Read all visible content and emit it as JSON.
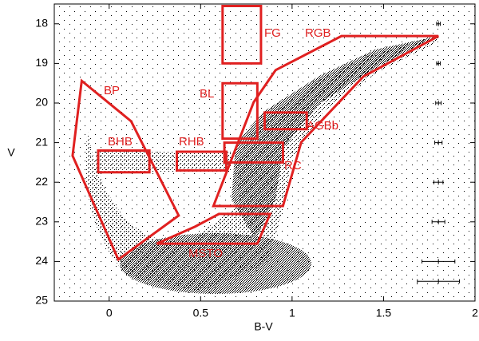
{
  "chart_data": {
    "type": "scatter",
    "x_label": "B-V",
    "y_label": "V",
    "xlim": [
      -0.3,
      2.0
    ],
    "ylim": [
      17.5,
      25
    ],
    "y_inverted": true,
    "xticks": [
      0,
      0.5,
      1,
      1.5,
      2
    ],
    "yticks": [
      18,
      19,
      20,
      21,
      22,
      23,
      24,
      25
    ],
    "region_color": "#e02020",
    "regions": [
      {
        "name": "FG",
        "x": [
          0.62,
          0.83,
          0.83,
          0.62
        ],
        "y": [
          17.55,
          17.55,
          19.0,
          19.0
        ]
      },
      {
        "name": "RGB",
        "x": [
          0.79,
          0.91,
          1.27,
          1.8,
          1.39,
          1.05,
          0.95,
          0.57
        ],
        "y": [
          19.98,
          19.17,
          18.31,
          18.31,
          19.33,
          20.99,
          22.6,
          22.6
        ]
      },
      {
        "name": "BP",
        "x": [
          -0.15,
          0.12,
          0.38,
          0.05,
          -0.2
        ],
        "y": [
          19.44,
          20.46,
          22.84,
          23.95,
          21.33
        ]
      },
      {
        "name": "BL",
        "x": [
          0.62,
          0.81,
          0.81,
          0.62
        ],
        "y": [
          19.5,
          19.5,
          20.9,
          20.9
        ]
      },
      {
        "name": "BHB",
        "x": [
          -0.06,
          0.22,
          0.22,
          -0.06
        ],
        "y": [
          21.2,
          21.2,
          21.75,
          21.75
        ]
      },
      {
        "name": "RHB",
        "x": [
          0.37,
          0.64,
          0.64,
          0.37
        ],
        "y": [
          21.23,
          21.23,
          21.7,
          21.7
        ]
      },
      {
        "name": "AGBb",
        "x": [
          0.85,
          1.08,
          1.08,
          0.85
        ],
        "y": [
          20.24,
          20.24,
          20.66,
          20.66
        ]
      },
      {
        "name": "RC",
        "x": [
          0.63,
          0.95,
          0.95,
          0.63
        ],
        "y": [
          21.0,
          21.0,
          21.5,
          21.5
        ]
      },
      {
        "name": "MSTO",
        "x": [
          0.26,
          0.47,
          0.6,
          0.88,
          0.81
        ],
        "y": [
          23.55,
          23.12,
          22.8,
          22.8,
          23.55
        ]
      }
    ],
    "error_bars": {
      "x": [
        1.8,
        1.8,
        1.8,
        1.8,
        1.8,
        1.8,
        1.8,
        1.8
      ],
      "y": [
        18,
        19,
        20,
        21,
        22,
        23,
        24,
        24.5
      ],
      "xerr": [
        0.01,
        0.01,
        0.015,
        0.02,
        0.025,
        0.035,
        0.09,
        0.115
      ]
    }
  }
}
